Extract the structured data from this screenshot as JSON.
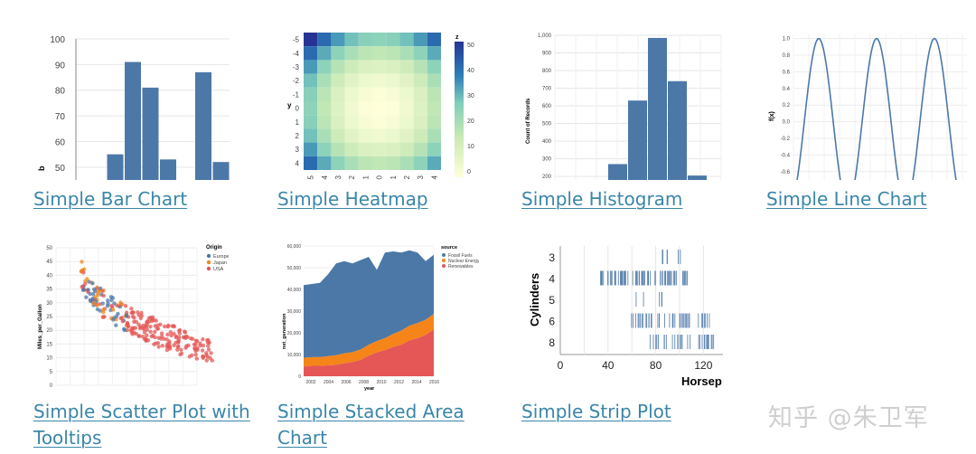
{
  "gallery": [
    {
      "id": "bar",
      "link": "Simple Bar Chart"
    },
    {
      "id": "heatmap",
      "link": "Simple Heatmap"
    },
    {
      "id": "histogram",
      "link": "Simple Histogram"
    },
    {
      "id": "line",
      "link": "Simple Line Chart"
    },
    {
      "id": "scatter",
      "link_line1": "Simple Scatter Plot with",
      "link_line2": "Tooltips"
    },
    {
      "id": "area",
      "link_line1": "Simple Stacked Area",
      "link_line2": "Chart"
    },
    {
      "id": "strip",
      "link": "Simple Strip Plot"
    }
  ],
  "watermark": "知乎 @朱卫军",
  "colors": {
    "link": "#3a86a8",
    "bar": "#4c78a8",
    "orange": "#f58518",
    "red": "#e45756"
  },
  "chart_data": [
    {
      "type": "bar",
      "ylabel": "b",
      "yticks": [
        "100",
        "90",
        "80",
        "70",
        "60",
        "50"
      ],
      "ylim": [
        45,
        100
      ],
      "values": [
        null,
        55,
        91,
        81,
        53,
        null,
        87,
        52
      ]
    },
    {
      "type": "heatmap",
      "ylabel": "y",
      "yticks": [
        "-5",
        "-4",
        "-3",
        "-2",
        "-1",
        "0",
        "1",
        "2",
        "3",
        "4"
      ],
      "xticks": [
        "-5",
        "-4",
        "-3",
        "-2",
        "-1",
        "0",
        "1",
        "2",
        "3",
        "4"
      ],
      "legend_title": "z",
      "legend_ticks": [
        "50",
        "40",
        "30",
        "20",
        "10",
        "0"
      ]
    },
    {
      "type": "bar",
      "ylabel": "Count of Records",
      "yticks": [
        "1,000",
        "900",
        "800",
        "700",
        "600",
        "500",
        "400",
        "300",
        "200"
      ],
      "ylim": [
        180,
        1000
      ],
      "values": [
        270,
        630,
        985,
        740,
        205
      ]
    },
    {
      "type": "line",
      "ylabel": "f(x)",
      "yticks": [
        "1.0",
        "0.8",
        "0.6",
        "0.4",
        "0.2",
        "0.0",
        "-0.2",
        "-0.4",
        "-0.6"
      ],
      "ylim": [
        -0.7,
        1.05
      ]
    },
    {
      "type": "scatter",
      "ylabel": "Miles_per_Gallon",
      "yticks": [
        "50",
        "45",
        "40",
        "35",
        "30",
        "25",
        "20",
        "15",
        "10",
        "5",
        "0"
      ],
      "legend_title": "Origin",
      "legend": [
        "Europe",
        "Japan",
        "USA"
      ]
    },
    {
      "type": "area",
      "ylabel": "net_generation",
      "xlabel": "year",
      "yticks": [
        "60,000",
        "50,000",
        "40,000",
        "30,000",
        "20,000",
        "10,000",
        "0"
      ],
      "xticks": [
        "2002",
        "2004",
        "2006",
        "2008",
        "2010",
        "2012",
        "2014",
        "2016"
      ],
      "legend_title": "source",
      "legend": [
        "Fossil Fuels",
        "Nuclear Energy",
        "Renewables"
      ]
    },
    {
      "type": "scatter",
      "ylabel": "Cylinders",
      "xlabel": "Horsep",
      "yticks": [
        "3",
        "4",
        "5",
        "6",
        "8"
      ],
      "xticks": [
        "0",
        "40",
        "80",
        "120"
      ]
    }
  ]
}
